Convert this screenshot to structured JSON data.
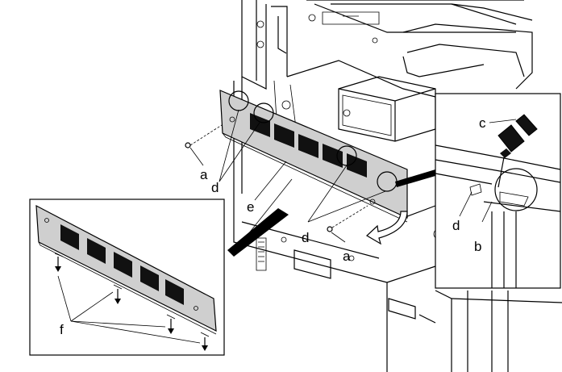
{
  "labels": {
    "a_left": "a",
    "a_right": "a",
    "b": "b",
    "c": "c",
    "d_left": "d",
    "d_right": "d",
    "d_inset": "d",
    "e": "e",
    "f": "f"
  },
  "icons": {
    "screwdriver": "screwdriver-icon",
    "screw": "screw-icon",
    "rotate_arrow": "rotate-arrow-icon",
    "down_arrow": "down-arrow-icon"
  },
  "colors": {
    "panel_fill": "#cfcfcf",
    "line": "#000000",
    "background": "#ffffff"
  }
}
